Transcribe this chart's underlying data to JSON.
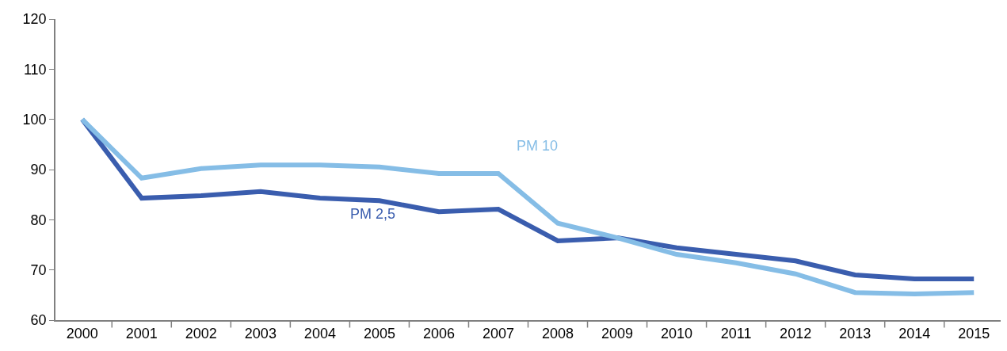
{
  "chart_data": {
    "type": "line",
    "categories": [
      "2000",
      "2001",
      "2002",
      "2003",
      "2004",
      "2005",
      "2006",
      "2007",
      "2008",
      "2009",
      "2010",
      "2011",
      "2012",
      "2013",
      "2014",
      "2015"
    ],
    "series": [
      {
        "name": "PM 2,5",
        "color": "#3a5dae",
        "values": [
          100,
          84.3,
          84.8,
          85.6,
          84.3,
          83.8,
          81.6,
          82.1,
          75.8,
          76.4,
          74.4,
          73.1,
          71.8,
          69.0,
          68.2,
          68.2
        ]
      },
      {
        "name": "PM 10",
        "color": "#85bde6",
        "values": [
          100,
          88.3,
          90.2,
          90.9,
          90.9,
          90.5,
          89.2,
          89.2,
          79.3,
          76.4,
          73.1,
          71.4,
          69.2,
          65.5,
          65.2,
          65.5
        ]
      }
    ],
    "ylim": [
      60,
      120
    ],
    "yticks": [
      60,
      70,
      80,
      90,
      100,
      110,
      120
    ],
    "grid": false,
    "legend": false,
    "marker": "none",
    "line_style": "solid"
  }
}
